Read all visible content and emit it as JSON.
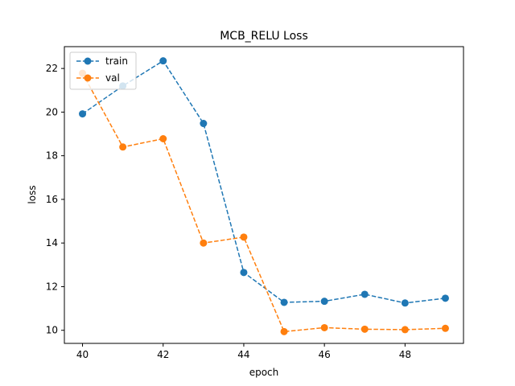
{
  "chart_data": {
    "type": "line",
    "title": "MCB_RELU Loss",
    "xlabel": "epoch",
    "ylabel": "loss",
    "xlim": [
      39.55,
      49.45
    ],
    "ylim": [
      9.4,
      23.0
    ],
    "xticks": [
      40,
      42,
      44,
      46,
      48
    ],
    "yticks": [
      10,
      12,
      14,
      16,
      18,
      20,
      22
    ],
    "grid": false,
    "legend_position": "top-left",
    "line_style": "dashed",
    "marker": "circle",
    "x": [
      40,
      41,
      42,
      43,
      44,
      45,
      46,
      47,
      48,
      49
    ],
    "series": [
      {
        "name": "train",
        "color": "#1f77b4",
        "values": [
          19.92,
          21.2,
          22.35,
          19.48,
          12.65,
          11.28,
          11.33,
          11.65,
          11.25,
          11.47
        ]
      },
      {
        "name": "val",
        "color": "#ff7f0e",
        "values": [
          21.78,
          18.4,
          18.78,
          14.0,
          14.27,
          9.94,
          10.12,
          10.05,
          10.03,
          10.09
        ]
      }
    ]
  }
}
